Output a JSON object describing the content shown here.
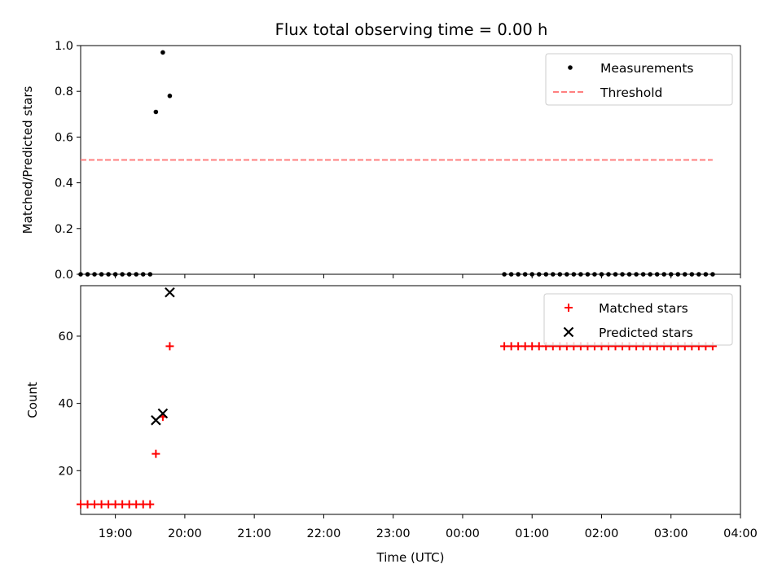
{
  "figure": {
    "title": "Flux total observing time = 0.00 h"
  },
  "chart_data": [
    {
      "type": "scatter",
      "panel": "top",
      "xlabel": "",
      "ylabel": "Matched/Predicted stars",
      "xlim": [
        "18:30",
        "04:00"
      ],
      "ylim": [
        0,
        1.0
      ],
      "yticks": [
        0.0,
        0.2,
        0.4,
        0.6,
        0.8,
        1.0
      ],
      "ytick_labels": [
        "0.0",
        "0.2",
        "0.4",
        "0.6",
        "0.8",
        "1.0"
      ],
      "legend": {
        "placement": "top-right",
        "entries": [
          "Measurements",
          "Threshold"
        ]
      },
      "threshold": {
        "name": "Threshold",
        "y": 0.5,
        "x_range": [
          "18:30",
          "03:36"
        ],
        "color": "#ff7f7f",
        "style": "dashed"
      },
      "series": [
        {
          "name": "Measurements",
          "color": "#000000",
          "marker": "dot",
          "points": [
            [
              "18:30",
              0.0
            ],
            [
              "18:36",
              0.0
            ],
            [
              "18:42",
              0.0
            ],
            [
              "18:48",
              0.0
            ],
            [
              "18:54",
              0.0
            ],
            [
              "19:00",
              0.0
            ],
            [
              "19:06",
              0.0
            ],
            [
              "19:12",
              0.0
            ],
            [
              "19:18",
              0.0
            ],
            [
              "19:24",
              0.0
            ],
            [
              "19:30",
              0.0
            ],
            [
              "19:35",
              0.71
            ],
            [
              "19:41",
              0.97
            ],
            [
              "19:47",
              0.78
            ],
            [
              "00:36",
              0.0
            ],
            [
              "00:42",
              0.0
            ],
            [
              "00:48",
              0.0
            ],
            [
              "00:54",
              0.0
            ],
            [
              "01:00",
              0.0
            ],
            [
              "01:06",
              0.0
            ],
            [
              "01:12",
              0.0
            ],
            [
              "01:18",
              0.0
            ],
            [
              "01:24",
              0.0
            ],
            [
              "01:30",
              0.0
            ],
            [
              "01:36",
              0.0
            ],
            [
              "01:42",
              0.0
            ],
            [
              "01:48",
              0.0
            ],
            [
              "01:54",
              0.0
            ],
            [
              "02:00",
              0.0
            ],
            [
              "02:06",
              0.0
            ],
            [
              "02:12",
              0.0
            ],
            [
              "02:18",
              0.0
            ],
            [
              "02:24",
              0.0
            ],
            [
              "02:30",
              0.0
            ],
            [
              "02:36",
              0.0
            ],
            [
              "02:42",
              0.0
            ],
            [
              "02:48",
              0.0
            ],
            [
              "02:54",
              0.0
            ],
            [
              "03:00",
              0.0
            ],
            [
              "03:06",
              0.0
            ],
            [
              "03:12",
              0.0
            ],
            [
              "03:18",
              0.0
            ],
            [
              "03:24",
              0.0
            ],
            [
              "03:30",
              0.0
            ],
            [
              "03:36",
              0.0
            ]
          ]
        }
      ]
    },
    {
      "type": "scatter",
      "panel": "bottom",
      "xlabel": "Time (UTC)",
      "ylabel": "Count",
      "xlim": [
        "18:30",
        "04:00"
      ],
      "ylim": [
        7,
        75
      ],
      "xticks": [
        "19:00",
        "20:00",
        "21:00",
        "22:00",
        "23:00",
        "00:00",
        "01:00",
        "02:00",
        "03:00",
        "04:00"
      ],
      "yticks": [
        20,
        40,
        60
      ],
      "ytick_labels": [
        "20",
        "40",
        "60"
      ],
      "legend": {
        "placement": "top-right",
        "entries": [
          "Matched stars",
          "Predicted stars"
        ]
      },
      "series": [
        {
          "name": "Matched stars",
          "color": "#ff0000",
          "marker": "plus",
          "points": [
            [
              "18:30",
              10
            ],
            [
              "18:36",
              10
            ],
            [
              "18:42",
              10
            ],
            [
              "18:48",
              10
            ],
            [
              "18:54",
              10
            ],
            [
              "19:00",
              10
            ],
            [
              "19:06",
              10
            ],
            [
              "19:12",
              10
            ],
            [
              "19:18",
              10
            ],
            [
              "19:24",
              10
            ],
            [
              "19:30",
              10
            ],
            [
              "19:35",
              25
            ],
            [
              "19:41",
              36
            ],
            [
              "19:47",
              57
            ],
            [
              "00:36",
              57
            ],
            [
              "00:42",
              57
            ],
            [
              "00:48",
              57
            ],
            [
              "00:54",
              57
            ],
            [
              "01:00",
              57
            ],
            [
              "01:06",
              57
            ],
            [
              "01:12",
              57
            ],
            [
              "01:18",
              57
            ],
            [
              "01:24",
              57
            ],
            [
              "01:30",
              57
            ],
            [
              "01:36",
              57
            ],
            [
              "01:42",
              57
            ],
            [
              "01:48",
              57
            ],
            [
              "01:54",
              57
            ],
            [
              "02:00",
              57
            ],
            [
              "02:06",
              57
            ],
            [
              "02:12",
              57
            ],
            [
              "02:18",
              57
            ],
            [
              "02:24",
              57
            ],
            [
              "02:30",
              57
            ],
            [
              "02:36",
              57
            ],
            [
              "02:42",
              57
            ],
            [
              "02:48",
              57
            ],
            [
              "02:54",
              57
            ],
            [
              "03:00",
              57
            ],
            [
              "03:06",
              57
            ],
            [
              "03:12",
              57
            ],
            [
              "03:18",
              57
            ],
            [
              "03:24",
              57
            ],
            [
              "03:30",
              57
            ],
            [
              "03:36",
              57
            ]
          ]
        },
        {
          "name": "Predicted stars",
          "color": "#000000",
          "marker": "x",
          "points": [
            [
              "19:35",
              35
            ],
            [
              "19:41",
              37
            ],
            [
              "19:47",
              73
            ]
          ]
        }
      ]
    }
  ]
}
